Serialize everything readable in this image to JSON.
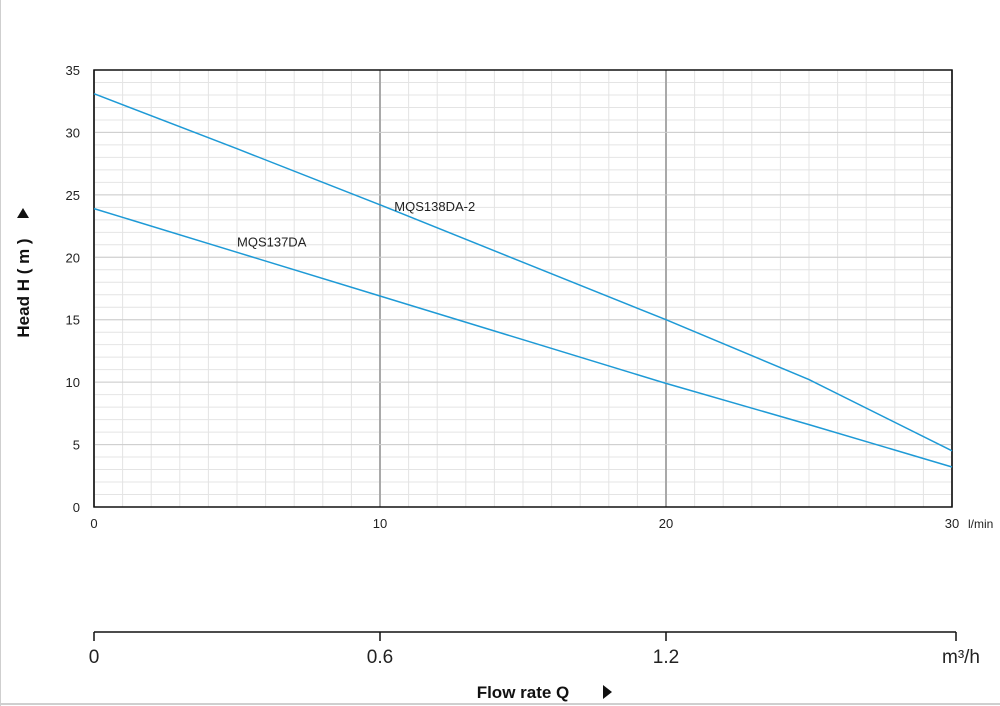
{
  "chart_data": {
    "type": "line",
    "ylabel": "Head H ( m )",
    "xlabel": "Flow rate Q",
    "x_unit": "l/min",
    "x2_unit": "m³/h",
    "xlim": [
      0,
      30
    ],
    "ylim": [
      0,
      35
    ],
    "x_ticks": [
      0,
      10,
      20,
      30
    ],
    "y_ticks": [
      0,
      5,
      10,
      15,
      20,
      25,
      30,
      35
    ],
    "x2_ticks": [
      {
        "x": 0,
        "label": "0"
      },
      {
        "x": 10,
        "label": "0.6"
      },
      {
        "x": 20,
        "label": "1.2"
      }
    ],
    "grid": true,
    "series": [
      {
        "name": "MQS138DA-2",
        "color": "#1e9ad6",
        "x": [
          0,
          5,
          10,
          15,
          20,
          25,
          30
        ],
        "y": [
          33.1,
          28.7,
          24.2,
          19.6,
          15.0,
          10.2,
          4.5
        ]
      },
      {
        "name": "MQS137DA",
        "color": "#1e9ad6",
        "x": [
          0,
          5,
          10,
          15,
          20,
          25,
          30
        ],
        "y": [
          23.9,
          20.4,
          16.9,
          13.4,
          9.9,
          6.6,
          3.2
        ]
      }
    ]
  }
}
